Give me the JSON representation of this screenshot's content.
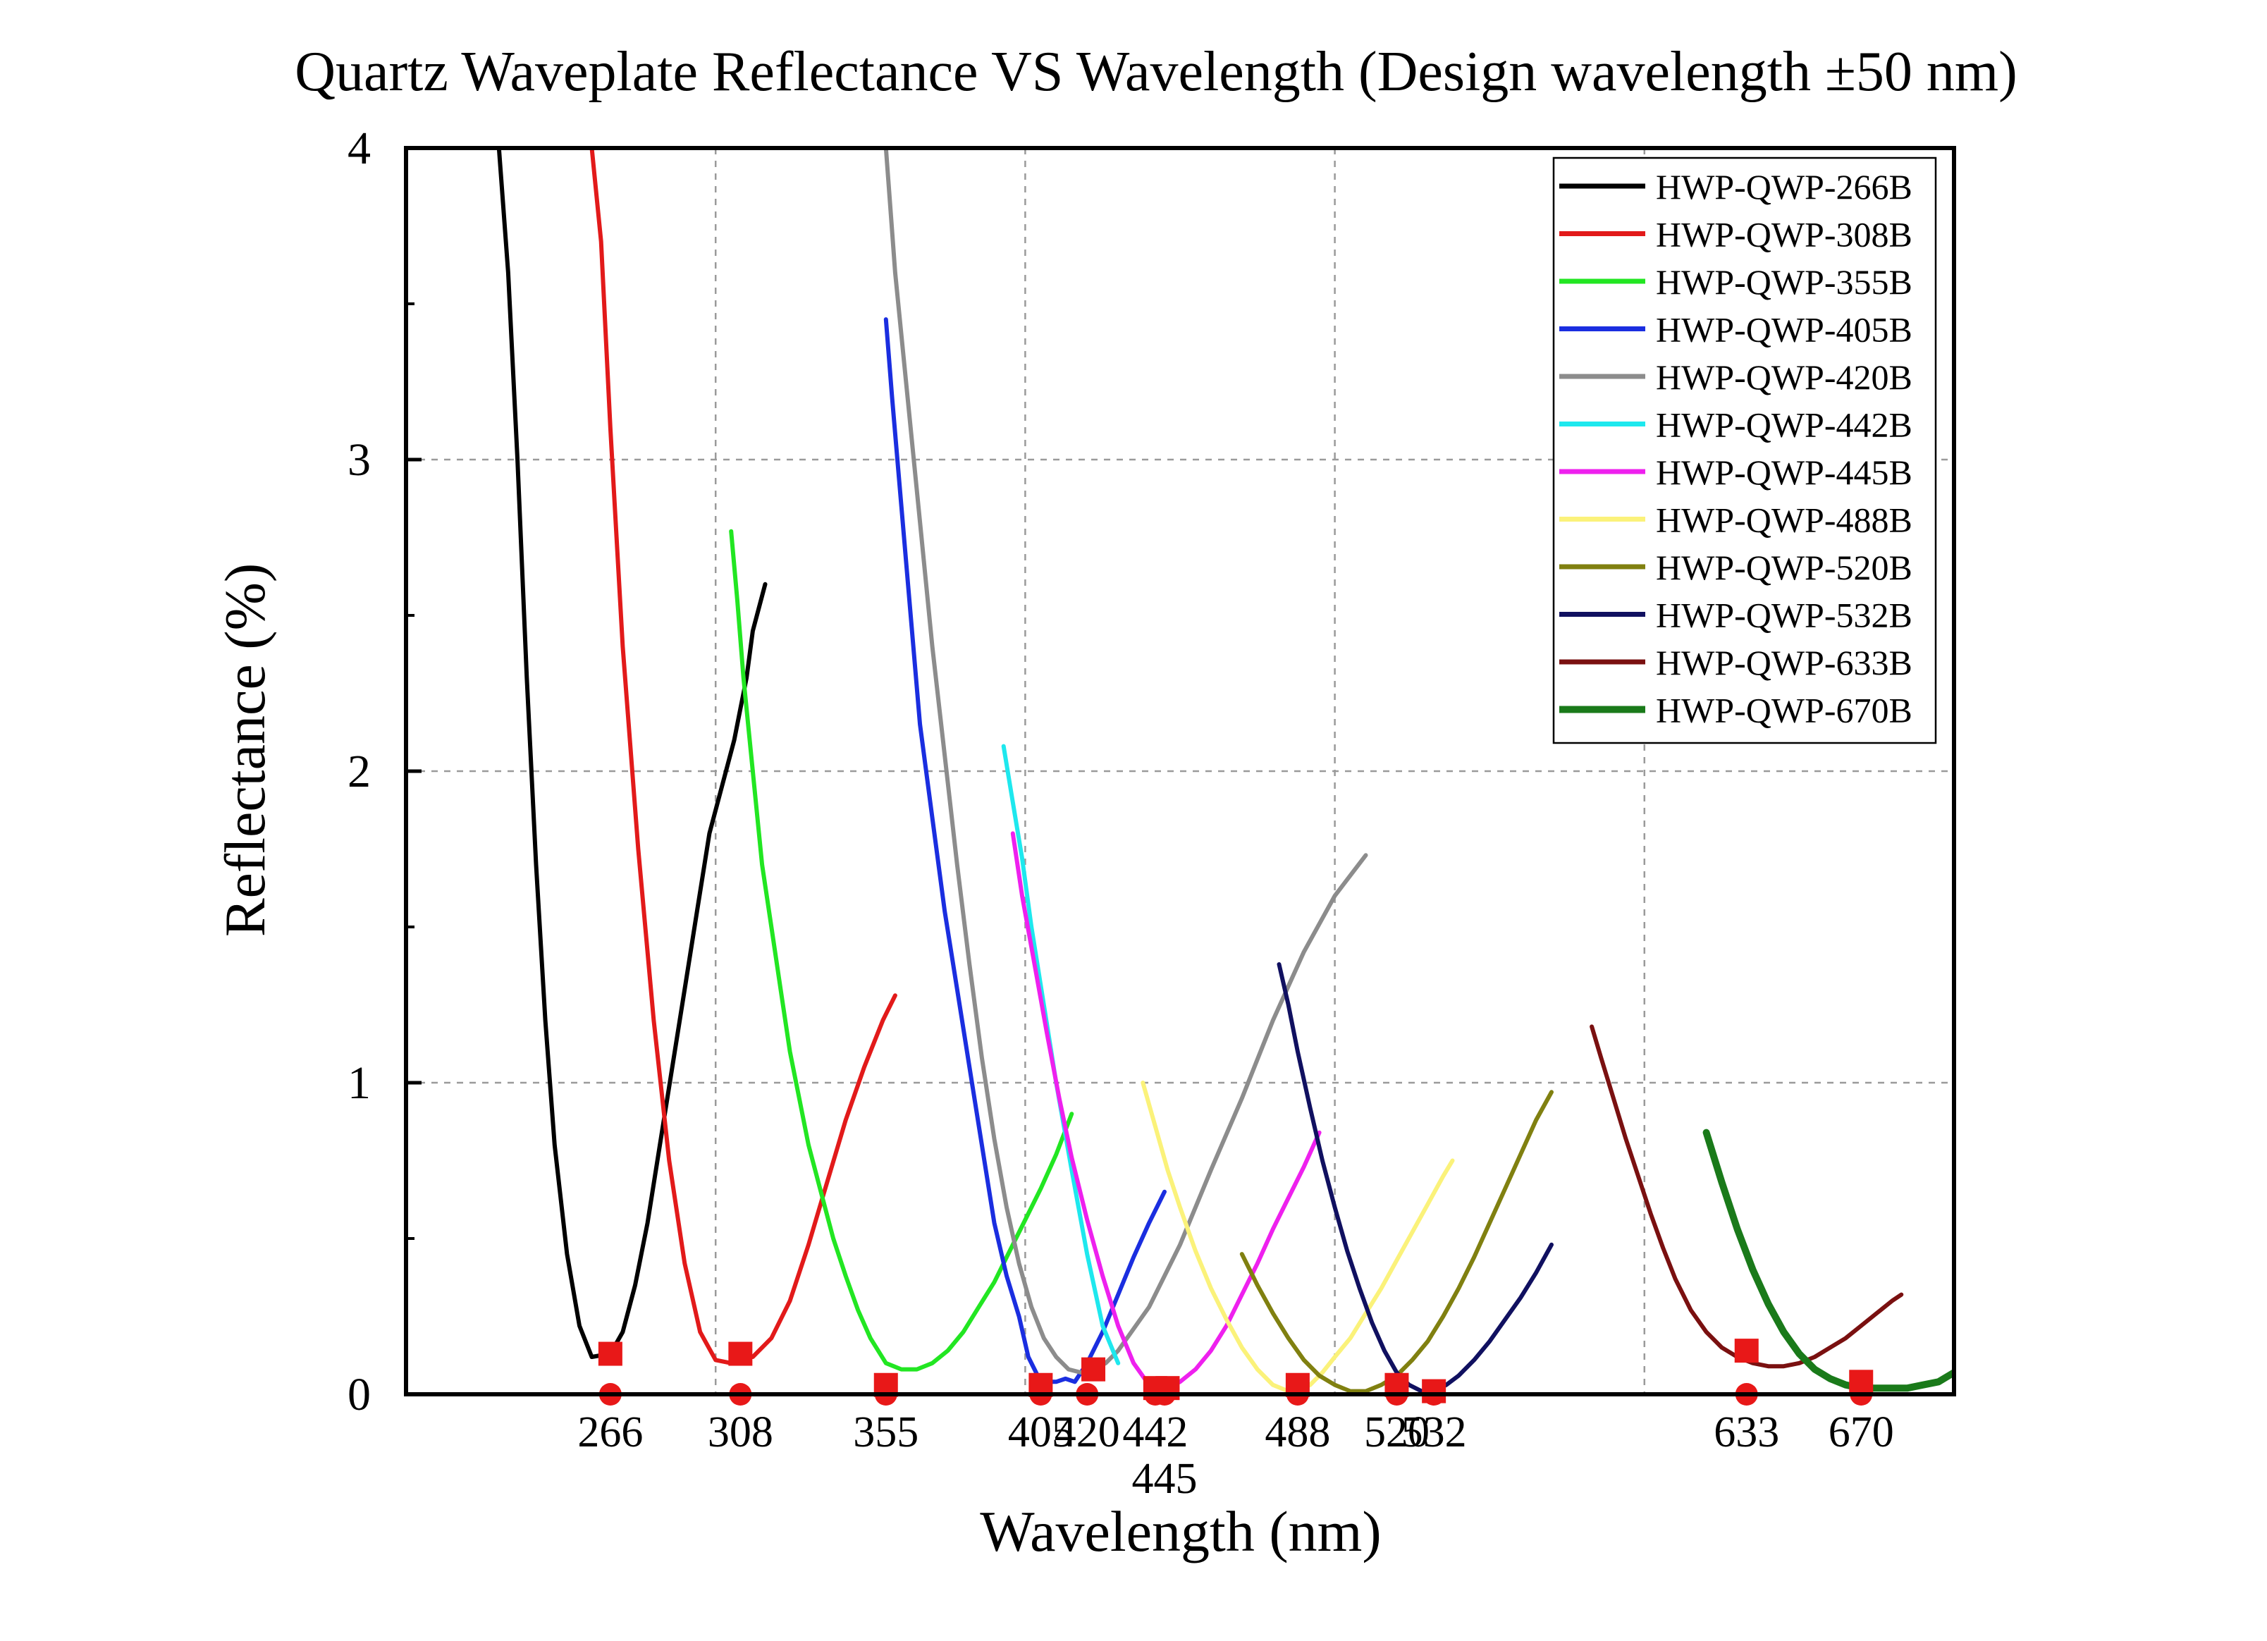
{
  "chart_data": {
    "type": "line",
    "title": "Quartz Waveplate Reflectance VS Wavelength (Design wavelength ±50 nm)",
    "xlabel": "Wavelength (nm)",
    "ylabel": "Reflectance (%)",
    "xlim": [
      200,
      700
    ],
    "ylim": [
      0,
      4
    ],
    "yticks": [
      0,
      1,
      2,
      3,
      4
    ],
    "grid": true,
    "legend_position": "top-right",
    "design_wavelengths": [
      266,
      308,
      355,
      405,
      420,
      442,
      445,
      488,
      520,
      532,
      633,
      670
    ],
    "xtick_labels": [
      {
        "text": "266",
        "x": 266,
        "row": 1
      },
      {
        "text": "308",
        "x": 308,
        "row": 1
      },
      {
        "text": "355",
        "x": 355,
        "row": 1
      },
      {
        "text": "405",
        "x": 405,
        "row": 1
      },
      {
        "text": "420",
        "x": 420,
        "row": 1
      },
      {
        "text": "442",
        "x": 442,
        "row": 1
      },
      {
        "text": "445",
        "x": 445,
        "row": 2
      },
      {
        "text": "488",
        "x": 488,
        "row": 1
      },
      {
        "text": "520",
        "x": 520,
        "row": 1
      },
      {
        "text": "532",
        "x": 532,
        "row": 1
      },
      {
        "text": "633",
        "x": 633,
        "row": 1
      },
      {
        "text": "670",
        "x": 670,
        "row": 1
      }
    ],
    "series": [
      {
        "name": "HWP-QWP-266B",
        "color": "#000000",
        "x": [
          230,
          233,
          236,
          239,
          242,
          245,
          248,
          252,
          256,
          260,
          266,
          270,
          274,
          278,
          282,
          286,
          290,
          294,
          298,
          302,
          306,
          308,
          310,
          312,
          316
        ],
        "y": [
          4.0,
          3.6,
          3.0,
          2.3,
          1.7,
          1.2,
          0.8,
          0.45,
          0.22,
          0.12,
          0.13,
          0.2,
          0.35,
          0.55,
          0.8,
          1.05,
          1.3,
          1.55,
          1.8,
          1.95,
          2.1,
          2.2,
          2.3,
          2.45,
          2.6
        ]
      },
      {
        "name": "HWP-QWP-308B",
        "color": "#e21a1a",
        "x": [
          260,
          263,
          266,
          270,
          275,
          280,
          285,
          290,
          295,
          300,
          305,
          308,
          312,
          318,
          324,
          330,
          336,
          342,
          348,
          354,
          358
        ],
        "y": [
          4.0,
          3.7,
          3.1,
          2.4,
          1.75,
          1.2,
          0.75,
          0.42,
          0.2,
          0.11,
          0.1,
          0.12,
          0.12,
          0.18,
          0.3,
          0.48,
          0.68,
          0.88,
          1.05,
          1.2,
          1.28
        ]
      },
      {
        "name": "HWP-QWP-355B",
        "color": "#22e622",
        "x": [
          305,
          307,
          309,
          312,
          315,
          318,
          321,
          324,
          327,
          330,
          334,
          338,
          342,
          346,
          350,
          355,
          360,
          365,
          370,
          375,
          380,
          385,
          390,
          395,
          400,
          405,
          410,
          415
        ],
        "y": [
          2.77,
          2.55,
          2.3,
          2.0,
          1.7,
          1.5,
          1.3,
          1.1,
          0.95,
          0.8,
          0.65,
          0.5,
          0.38,
          0.27,
          0.18,
          0.1,
          0.08,
          0.08,
          0.1,
          0.14,
          0.2,
          0.28,
          0.36,
          0.46,
          0.56,
          0.66,
          0.77,
          0.9
        ]
      },
      {
        "name": "HWP-QWP-405B",
        "color": "#1a2ee0",
        "x": [
          355,
          357,
          360,
          363,
          366,
          370,
          374,
          378,
          382,
          386,
          390,
          394,
          398,
          401,
          404,
          407,
          410,
          413,
          416,
          420,
          425,
          430,
          435,
          440,
          445
        ],
        "y": [
          3.45,
          3.2,
          2.85,
          2.5,
          2.15,
          1.85,
          1.55,
          1.3,
          1.05,
          0.8,
          0.55,
          0.38,
          0.25,
          0.12,
          0.06,
          0.04,
          0.04,
          0.05,
          0.04,
          0.1,
          0.2,
          0.32,
          0.44,
          0.55,
          0.65
        ]
      },
      {
        "name": "HWP-QWP-420B",
        "color": "#8c8c8c",
        "x": [
          355,
          358,
          362,
          366,
          370,
          374,
          378,
          382,
          386,
          390,
          394,
          398,
          402,
          406,
          410,
          414,
          418,
          422,
          426,
          430,
          440,
          450,
          460,
          470,
          480,
          490,
          500,
          510
        ],
        "y": [
          4.0,
          3.6,
          3.2,
          2.8,
          2.4,
          2.05,
          1.7,
          1.38,
          1.08,
          0.82,
          0.6,
          0.42,
          0.28,
          0.18,
          0.12,
          0.08,
          0.07,
          0.08,
          0.1,
          0.14,
          0.28,
          0.48,
          0.72,
          0.95,
          1.2,
          1.42,
          1.6,
          1.73
        ]
      },
      {
        "name": "HWP-QWP-442B",
        "color": "#1ee8ee",
        "x": [
          393,
          396,
          399,
          402,
          406,
          410,
          415,
          420,
          425,
          430
        ],
        "y": [
          2.08,
          1.9,
          1.72,
          1.5,
          1.25,
          1.0,
          0.72,
          0.45,
          0.22,
          0.1
        ]
      },
      {
        "name": "HWP-QWP-445B",
        "color": "#ee20ee",
        "x": [
          396,
          399,
          403,
          407,
          411,
          415,
          420,
          425,
          430,
          435,
          440,
          445,
          450,
          455,
          460,
          465,
          470,
          475,
          480,
          485,
          490,
          495
        ],
        "y": [
          1.8,
          1.6,
          1.38,
          1.16,
          0.95,
          0.76,
          0.56,
          0.38,
          0.22,
          0.1,
          0.03,
          0.02,
          0.04,
          0.08,
          0.14,
          0.22,
          0.32,
          0.42,
          0.53,
          0.63,
          0.73,
          0.84
        ]
      },
      {
        "name": "HWP-QWP-488B",
        "color": "#fbf27a",
        "x": [
          438,
          442,
          446,
          450,
          455,
          460,
          465,
          470,
          475,
          480,
          485,
          488,
          492,
          496,
          500,
          505,
          510,
          515,
          520,
          525,
          530,
          535,
          538
        ],
        "y": [
          1.0,
          0.86,
          0.72,
          0.6,
          0.46,
          0.34,
          0.24,
          0.15,
          0.08,
          0.03,
          0.01,
          0.01,
          0.03,
          0.07,
          0.12,
          0.18,
          0.26,
          0.34,
          0.43,
          0.52,
          0.61,
          0.7,
          0.75
        ]
      },
      {
        "name": "HWP-QWP-520B",
        "color": "#808010",
        "x": [
          470,
          475,
          480,
          485,
          490,
          495,
          500,
          505,
          510,
          515,
          520,
          525,
          530,
          535,
          540,
          545,
          550,
          555,
          560,
          565,
          570
        ],
        "y": [
          0.45,
          0.35,
          0.26,
          0.18,
          0.11,
          0.06,
          0.03,
          0.01,
          0.01,
          0.03,
          0.06,
          0.11,
          0.17,
          0.25,
          0.34,
          0.44,
          0.55,
          0.66,
          0.77,
          0.88,
          0.97
        ]
      },
      {
        "name": "HWP-QWP-532B",
        "color": "#101060",
        "x": [
          482,
          485,
          488,
          492,
          496,
          500,
          504,
          508,
          512,
          516,
          520,
          524,
          528,
          532,
          536,
          540,
          545,
          550,
          555,
          560,
          565,
          570
        ],
        "y": [
          1.38,
          1.25,
          1.1,
          0.92,
          0.75,
          0.6,
          0.46,
          0.34,
          0.23,
          0.14,
          0.07,
          0.03,
          0.01,
          0.01,
          0.03,
          0.06,
          0.11,
          0.17,
          0.24,
          0.31,
          0.39,
          0.48
        ]
      },
      {
        "name": "HWP-QWP-633B",
        "color": "#7a1010",
        "x": [
          583,
          586,
          590,
          594,
          598,
          602,
          606,
          610,
          615,
          620,
          625,
          630,
          635,
          640,
          645,
          650,
          655,
          660,
          665,
          670,
          675,
          680,
          683
        ],
        "y": [
          1.18,
          1.08,
          0.95,
          0.82,
          0.7,
          0.58,
          0.47,
          0.37,
          0.27,
          0.2,
          0.15,
          0.12,
          0.1,
          0.09,
          0.09,
          0.1,
          0.12,
          0.15,
          0.18,
          0.22,
          0.26,
          0.3,
          0.32
        ]
      },
      {
        "name": "HWP-QWP-670B",
        "color": "#1a7a1a",
        "x": [
          620,
          625,
          630,
          635,
          640,
          645,
          650,
          655,
          660,
          665,
          670,
          675,
          680,
          685,
          690,
          695,
          700
        ],
        "y": [
          0.84,
          0.68,
          0.53,
          0.4,
          0.29,
          0.2,
          0.13,
          0.08,
          0.05,
          0.03,
          0.02,
          0.02,
          0.02,
          0.02,
          0.03,
          0.04,
          0.07
        ]
      }
    ],
    "markers_square": {
      "color": "#e81818",
      "points": [
        [
          266,
          0.13
        ],
        [
          308,
          0.13
        ],
        [
          355,
          0.03
        ],
        [
          405,
          0.03
        ],
        [
          422,
          0.08
        ],
        [
          442,
          0.02
        ],
        [
          446,
          0.02
        ],
        [
          488,
          0.03
        ],
        [
          520,
          0.03
        ],
        [
          532,
          0.01
        ],
        [
          633,
          0.14
        ],
        [
          670,
          0.04
        ]
      ]
    },
    "markers_circle": {
      "color": "#e81818",
      "points": [
        [
          266,
          0.0
        ],
        [
          308,
          0.0
        ],
        [
          355,
          0.0
        ],
        [
          405,
          0.0
        ],
        [
          420,
          0.0
        ],
        [
          442,
          0.0
        ],
        [
          445,
          0.0
        ],
        [
          488,
          0.0
        ],
        [
          520,
          0.0
        ],
        [
          532,
          0.0
        ],
        [
          633,
          0.0
        ],
        [
          670,
          0.0
        ]
      ]
    }
  }
}
